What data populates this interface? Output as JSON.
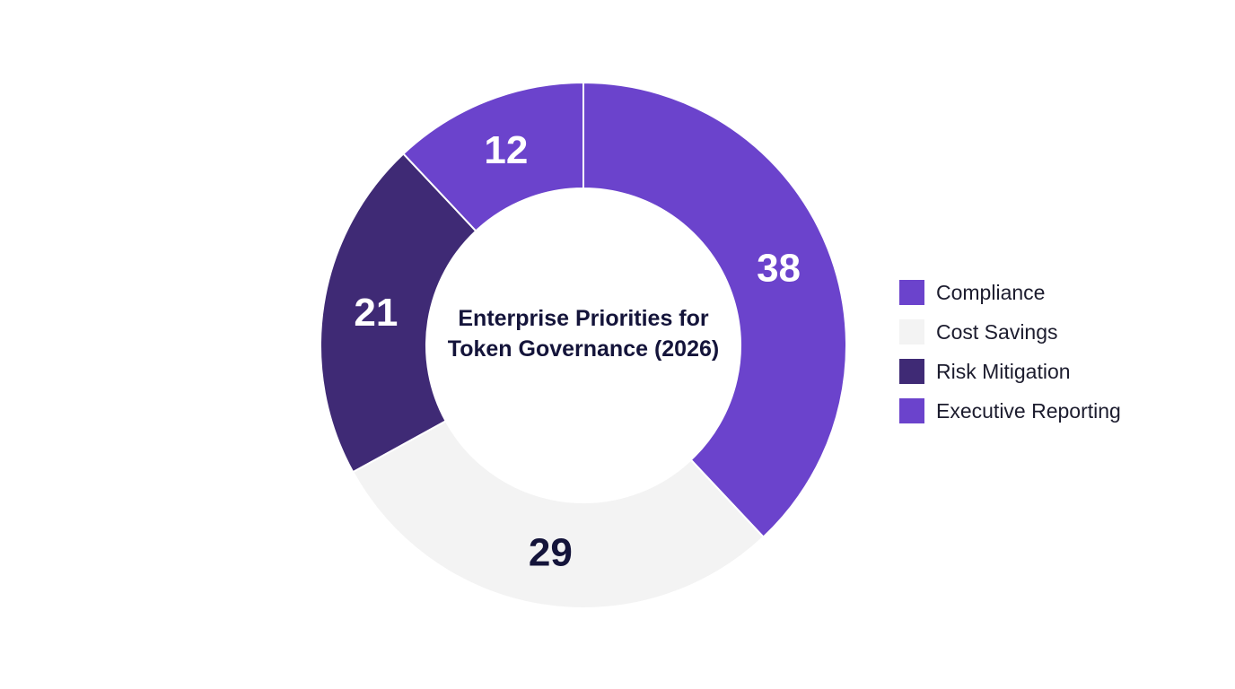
{
  "chart_data": {
    "type": "donut",
    "title": "Enterprise Priorities for Token Governance (2026)",
    "categories": [
      "Compliance",
      "Cost Savings",
      "Risk Mitigation",
      "Executive Reporting"
    ],
    "values": [
      38,
      29,
      21,
      12
    ],
    "colors": [
      "#6b43cc",
      "#f3f3f3",
      "#3f2a75",
      "#6b43cc"
    ],
    "legend": "right"
  }
}
